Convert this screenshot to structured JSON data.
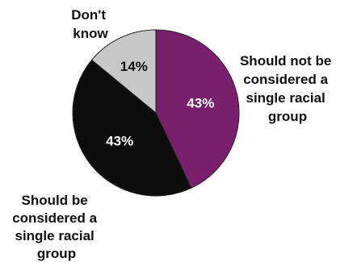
{
  "chart_data": {
    "type": "pie",
    "slices": [
      {
        "label_lines": [
          "Should not be",
          "considered a",
          "single racial",
          "group"
        ],
        "value": 43,
        "value_label": "43%",
        "color": "#7a1f6e",
        "text_color": "#ffffff"
      },
      {
        "label_lines": [
          "Should be",
          "considered a",
          "single racial",
          "group"
        ],
        "value": 43,
        "value_label": "43%",
        "color": "#0d0d0d",
        "text_color": "#ffffff"
      },
      {
        "label_lines": [
          "Don't",
          "know"
        ],
        "value": 14,
        "value_label": "14%",
        "color": "#c8c8c8",
        "text_color": "#111111"
      }
    ],
    "start_angle_deg": 0,
    "direction": "clockwise"
  }
}
